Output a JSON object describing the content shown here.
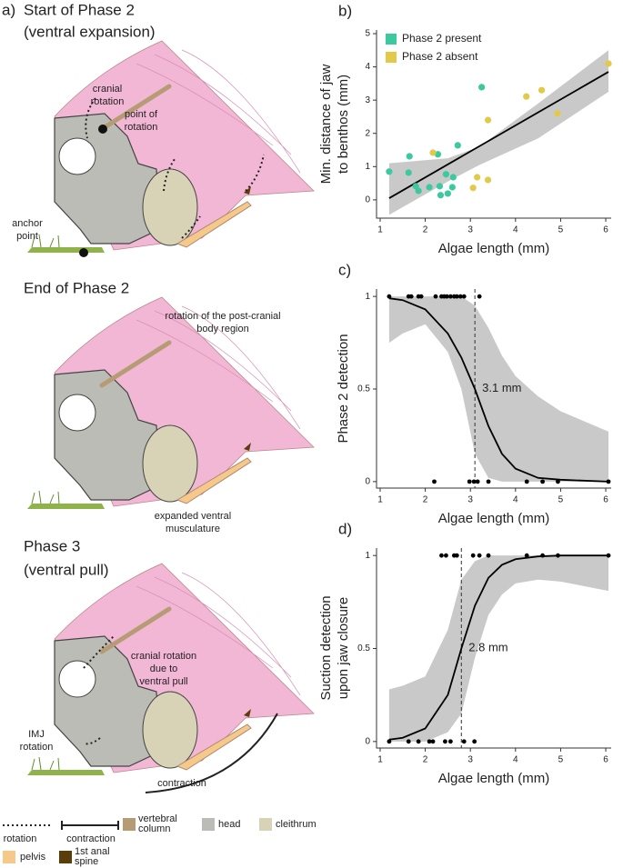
{
  "figure_a": {
    "label": "a)",
    "panels": [
      {
        "title": [
          "Start of Phase 2",
          "(ventral expansion)"
        ],
        "notes": [
          [
            "cranial",
            "rotation"
          ],
          [
            "point of",
            "rotation"
          ],
          [
            "anchor",
            "point"
          ]
        ]
      },
      {
        "title": [
          "End of Phase 2"
        ],
        "notes": [
          [
            "rotation of the post-cranial",
            "body region"
          ],
          [
            "expanded ventral",
            "musculature"
          ]
        ]
      },
      {
        "title": [
          "Phase 3",
          "(ventral pull)"
        ],
        "notes": [
          [
            "cranial rotation",
            "due to",
            "ventral pull"
          ],
          [
            "IMJ",
            "rotation"
          ],
          [
            "contraction"
          ]
        ]
      }
    ],
    "legend": [
      [
        "rotation"
      ],
      [
        "contraction"
      ],
      [
        "vertebral",
        "column"
      ],
      [
        "head"
      ],
      [
        "cleithrum"
      ],
      [
        "pelvis"
      ],
      [
        "1st anal",
        "spine"
      ]
    ]
  },
  "chart_data": [
    {
      "type": "scatter",
      "label": "b)",
      "ylabel": [
        "Min. distance of jaw",
        "to benthos (mm)"
      ],
      "xlabel": "Algae length (mm)",
      "xlim": [
        0.92,
        6.12
      ],
      "ylim": [
        -0.55,
        5.11
      ],
      "xticks": [
        1,
        2,
        3,
        4,
        5,
        6
      ],
      "yticks": [
        0,
        1,
        2,
        3,
        4,
        5
      ],
      "legend": "upper left",
      "series": [
        {
          "name": "Phase 2 present",
          "color": "#3cc9a0",
          "x": [
            1.2,
            1.65,
            1.63,
            1.79,
            1.85,
            2.09,
            2.28,
            2.32,
            2.34,
            2.46,
            2.6,
            2.5,
            2.72,
            2.62,
            3.25
          ],
          "values": [
            0.85,
            1.31,
            0.82,
            0.41,
            0.27,
            0.38,
            1.37,
            0.41,
            0.14,
            0.77,
            0.38,
            0.19,
            1.64,
            0.68,
            3.39
          ]
        },
        {
          "name": "Phase 2 absent",
          "color": "#e3c94a",
          "x": [
            2.17,
            3.06,
            3.15,
            3.39,
            3.39,
            4.24,
            4.58,
            4.93,
            6.06
          ],
          "values": [
            1.42,
            0.36,
            0.68,
            2.4,
            0.6,
            3.11,
            3.3,
            2.6,
            4.1
          ]
        }
      ],
      "fit": {
        "x": [
          1.2,
          6.06
        ],
        "values": [
          0.05,
          3.85
        ]
      },
      "band": {
        "x": [
          1.2,
          2.5,
          3.2,
          4.5,
          6.06
        ],
        "lower": [
          -0.45,
          0.55,
          1.05,
          1.85,
          3.25
        ],
        "upper": [
          1.1,
          1.25,
          1.6,
          2.9,
          4.5
        ]
      }
    },
    {
      "type": "scatter",
      "label": "c)",
      "ylabel": [
        "Phase 2 detection"
      ],
      "xlabel": "Algae length (mm)",
      "xlim": [
        0.92,
        6.12
      ],
      "ylim": [
        -0.035,
        1.04
      ],
      "xticks": [
        1,
        2,
        3,
        4,
        5,
        6
      ],
      "yticks": [
        0,
        0.5,
        1
      ],
      "series": [
        {
          "color": "#000000",
          "x": [
            1.2,
            1.63,
            1.69,
            1.85,
            1.91,
            2.23,
            2.36,
            2.42,
            2.48,
            2.56,
            2.64,
            2.7,
            2.78,
            2.86,
            3.2,
            2.2,
            2.98,
            3.08,
            3.16,
            3.4,
            4.25,
            4.6,
            4.94,
            6.06
          ],
          "values": [
            1,
            1,
            1,
            1,
            1,
            1,
            1,
            1,
            1,
            1,
            1,
            1,
            1,
            1,
            1,
            0,
            0,
            0,
            0,
            0,
            0,
            0,
            0,
            0
          ]
        }
      ],
      "fit": {
        "x": [
          1.2,
          1.5,
          2,
          2.5,
          2.8,
          3.1,
          3.4,
          3.7,
          4,
          4.5,
          5,
          6.06
        ],
        "values": [
          0.99,
          0.98,
          0.93,
          0.8,
          0.67,
          0.5,
          0.3,
          0.15,
          0.07,
          0.02,
          0.01,
          0
        ]
      },
      "band": {
        "x": [
          1.2,
          1.5,
          2,
          2.5,
          2.8,
          3.1,
          3.4,
          3.7,
          4,
          4.5,
          5,
          6.06
        ],
        "lower": [
          0.75,
          0.8,
          0.85,
          0.7,
          0.5,
          0.15,
          0.02,
          0,
          0,
          0,
          0,
          0
        ],
        "upper": [
          1,
          1,
          1,
          1,
          1,
          0.95,
          0.83,
          0.68,
          0.57,
          0.46,
          0.38,
          0.27
        ]
      },
      "threshold": {
        "x": 3.1,
        "label": "3.1 mm"
      }
    },
    {
      "type": "scatter",
      "label": "d)",
      "ylabel": [
        "Suction detection",
        "upon jaw closure"
      ],
      "xlabel": "Algae length (mm)",
      "xlim": [
        0.92,
        6.12
      ],
      "ylim": [
        -0.035,
        1.04
      ],
      "xticks": [
        1,
        2,
        3,
        4,
        5,
        6
      ],
      "yticks": [
        0,
        0.5,
        1
      ],
      "series": [
        {
          "color": "#000000",
          "x": [
            2.36,
            2.46,
            2.64,
            2.7,
            3.06,
            3.2,
            3.4,
            4.25,
            4.6,
            4.94,
            6.06,
            1.2,
            1.63,
            1.85,
            2.09,
            2.17,
            2.44,
            2.56,
            2.86,
            3.09
          ],
          "values": [
            1,
            1,
            1,
            1,
            1,
            1,
            1,
            1,
            1,
            1,
            1,
            0,
            0,
            0,
            0,
            0,
            0,
            0,
            0,
            0
          ]
        }
      ],
      "fit": {
        "x": [
          1.2,
          1.5,
          2,
          2.5,
          2.8,
          3.1,
          3.4,
          3.7,
          4,
          4.5,
          5,
          6.06
        ],
        "values": [
          0.01,
          0.02,
          0.07,
          0.25,
          0.5,
          0.73,
          0.88,
          0.95,
          0.98,
          0.995,
          1,
          1
        ]
      },
      "band": {
        "x": [
          1.2,
          1.5,
          2,
          2.5,
          2.8,
          3.1,
          3.4,
          3.7,
          4,
          4.5,
          5,
          6.06
        ],
        "lower": [
          0,
          0,
          0,
          0.05,
          0.15,
          0.45,
          0.68,
          0.79,
          0.85,
          0.87,
          0.86,
          0.81
        ],
        "upper": [
          0.28,
          0.3,
          0.35,
          0.6,
          0.87,
          0.97,
          1,
          1,
          1,
          1,
          1,
          1
        ]
      },
      "threshold": {
        "x": 2.8,
        "label": "2.8 mm"
      }
    }
  ]
}
